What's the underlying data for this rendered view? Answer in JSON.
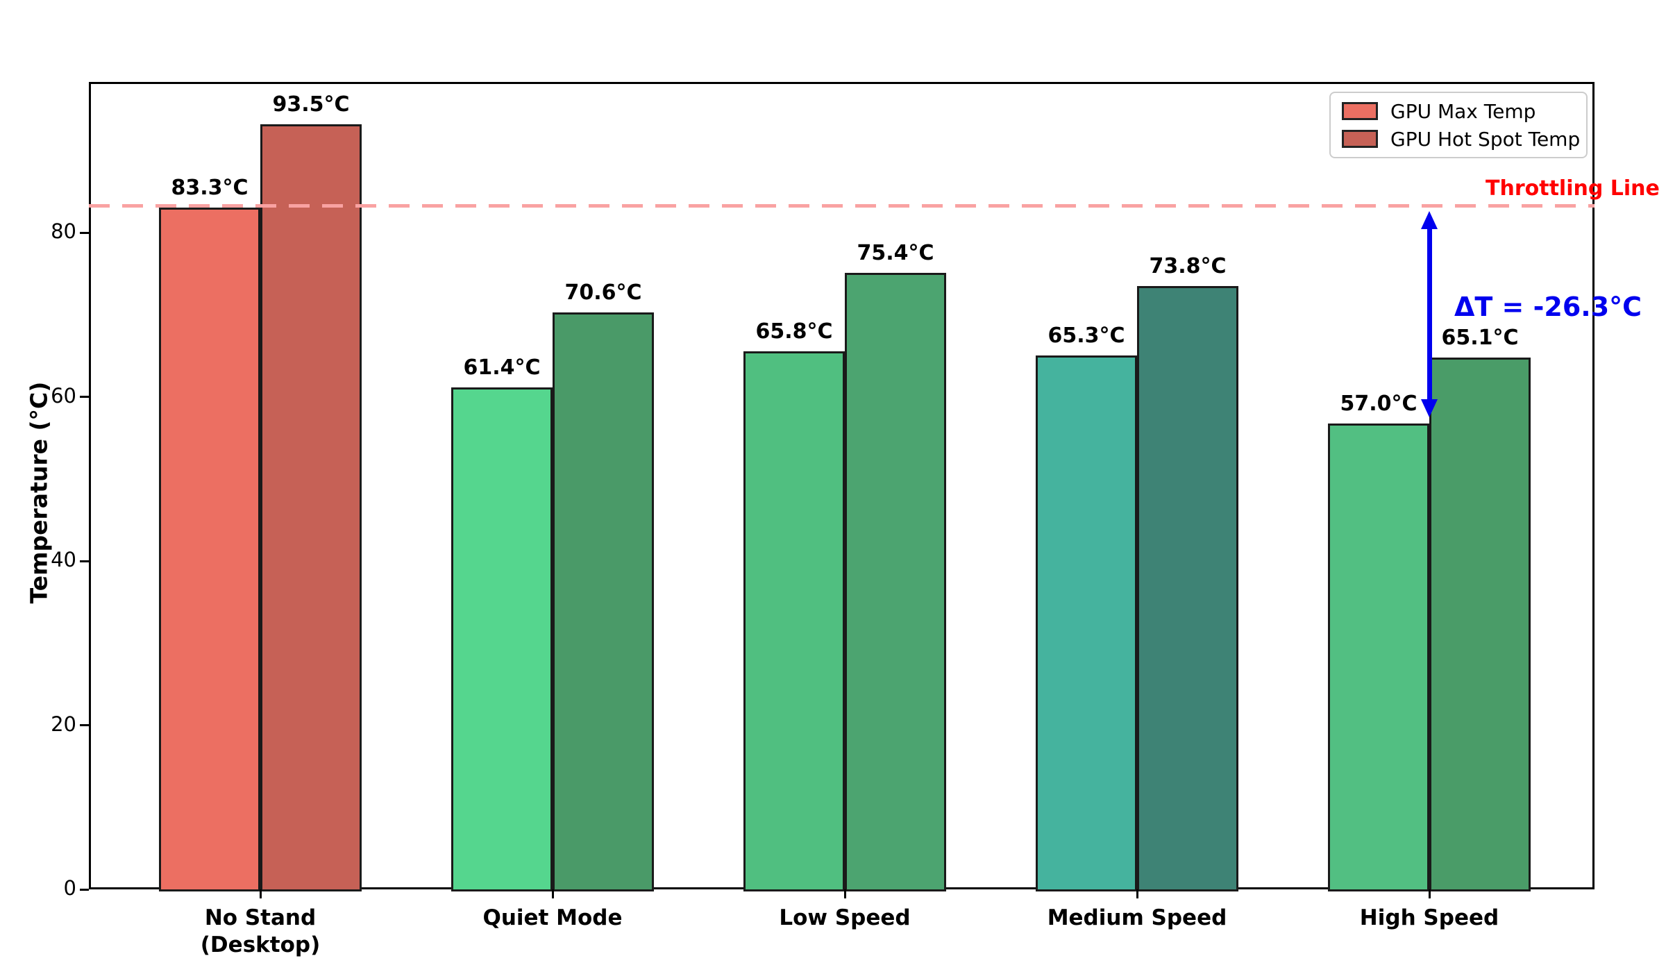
{
  "chart_data": {
    "type": "bar",
    "title": "",
    "categories": [
      "No Stand\n(Desktop)",
      "Quiet Mode",
      "Low Speed",
      "Medium Speed",
      "High Speed"
    ],
    "series": [
      {
        "name": "GPU Max Temp",
        "values": [
          83.3,
          61.4,
          65.8,
          65.3,
          57.0
        ],
        "colors": [
          "#EC6F62",
          "#55D68E",
          "#50BF80",
          "#45B39E",
          "#52BF82"
        ]
      },
      {
        "name": "GPU Hot Spot Temp",
        "values": [
          93.5,
          70.6,
          75.4,
          73.8,
          65.1
        ],
        "colors": [
          "#C66156",
          "#4A9A68",
          "#4CA470",
          "#3E8375",
          "#4A9C68"
        ]
      }
    ],
    "value_label_suffix": "°C",
    "bar_edge_color": "#1a1a1a",
    "ylabel": "Temperature (°C)",
    "yticks": [
      0,
      20,
      40,
      60,
      80
    ],
    "ylim": [
      0,
      98.4
    ],
    "grid": false,
    "legend": {
      "position": "top-right",
      "entries": [
        "GPU Max Temp",
        "GPU Hot Spot Temp"
      ],
      "swatch_colors": [
        "#EC6F62",
        "#C66156"
      ]
    },
    "annotations": {
      "throttling_line": {
        "value": 83.3,
        "label": "Throttling Line",
        "line_color": "#F9A2A2",
        "label_color": "#FF0000"
      },
      "delta": {
        "label": "ΔT = -26.3°C",
        "from_value": 83.3,
        "to_value": 57.0,
        "color": "#0000EE",
        "arrow_color": "#0000EE",
        "at_category": "High Speed"
      }
    }
  }
}
